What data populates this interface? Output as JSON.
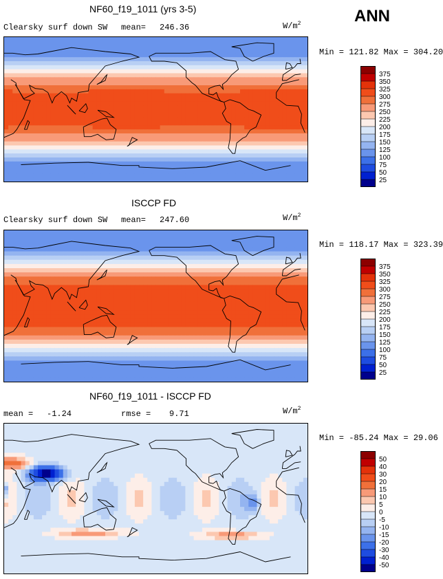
{
  "header": {
    "season": "ANN"
  },
  "chart_data": [
    {
      "type": "heatmap",
      "title": "NF60_f19_1011 (yrs 3-5)",
      "variable": "Clearsky surf down SW",
      "mean_label": "mean=",
      "mean": "246.36",
      "units_base": "W/m",
      "units_exp": "2",
      "stats": "Min = 121.82 Max = 304.20",
      "min": 121.82,
      "max": 304.2,
      "colorbar": {
        "labels": [
          "375",
          "350",
          "325",
          "300",
          "275",
          "250",
          "225",
          "200",
          "175",
          "150",
          "125",
          "100",
          "75",
          "50",
          "25"
        ],
        "colors": [
          "#8c0000",
          "#c00000",
          "#e4320a",
          "#f04d1a",
          "#f0703a",
          "#f89a78",
          "#fcc8b0",
          "#fdeee8",
          "#d8e6f8",
          "#b8cff4",
          "#94b4f0",
          "#6a94ec",
          "#3c70e8",
          "#1e4ce0",
          "#0020d0",
          "#00008c"
        ]
      },
      "field_mode": "abs",
      "field_offset": 0
    },
    {
      "type": "heatmap",
      "title": "ISCCP FD",
      "variable": "Clearsky surf down SW",
      "mean_label": "mean=",
      "mean": "247.60",
      "units_base": "W/m",
      "units_exp": "2",
      "stats": "Min = 118.17 Max = 323.39",
      "min": 118.17,
      "max": 323.39,
      "colorbar": {
        "labels": [
          "375",
          "350",
          "325",
          "300",
          "275",
          "250",
          "225",
          "200",
          "175",
          "150",
          "125",
          "100",
          "75",
          "50",
          "25"
        ],
        "colors": [
          "#8c0000",
          "#c00000",
          "#e4320a",
          "#f04d1a",
          "#f0703a",
          "#f89a78",
          "#fcc8b0",
          "#fdeee8",
          "#d8e6f8",
          "#b8cff4",
          "#94b4f0",
          "#6a94ec",
          "#3c70e8",
          "#1e4ce0",
          "#0020d0",
          "#00008c"
        ]
      },
      "field_mode": "abs",
      "field_offset": 12
    },
    {
      "type": "heatmap",
      "title": "NF60_f19_1011 - ISCCP FD",
      "mean_label": "mean =",
      "mean": "-1.24",
      "rmse_label": "rmse =",
      "rmse": "9.71",
      "units_base": "W/m",
      "units_exp": "2",
      "stats": "Min = -85.24 Max =  29.06",
      "min": -85.24,
      "max": 29.06,
      "colorbar": {
        "labels": [
          "50",
          "40",
          "30",
          "20",
          "15",
          "10",
          "5",
          "0",
          "-5",
          "-10",
          "-15",
          "-20",
          "-30",
          "-40",
          "-50"
        ],
        "colors": [
          "#8c0000",
          "#c00000",
          "#e4320a",
          "#f04d1a",
          "#f0703a",
          "#f89a78",
          "#fcc8b0",
          "#fdeee8",
          "#d8e6f8",
          "#b8cff4",
          "#94b4f0",
          "#6a94ec",
          "#3c70e8",
          "#1e4ce0",
          "#0020d0",
          "#00008c"
        ]
      },
      "field_mode": "diff",
      "field_offset": 0
    }
  ]
}
